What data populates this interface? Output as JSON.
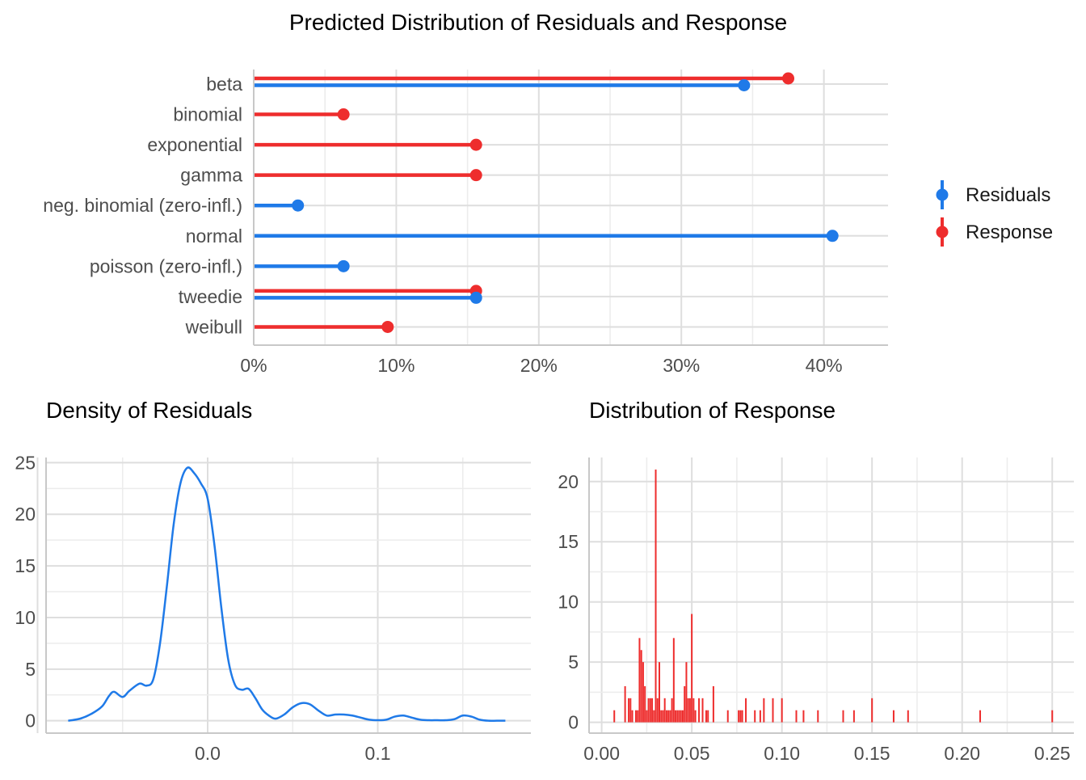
{
  "colors": {
    "residuals": "#1f7ae8",
    "response": "#ee2d2d"
  },
  "chart_data": [
    {
      "type": "bar",
      "orientation": "horizontal",
      "title": "Predicted Distribution of Residuals and Response",
      "categories": [
        "beta",
        "binomial",
        "exponential",
        "gamma",
        "neg. binomial (zero-infl.)",
        "normal",
        "poisson (zero-infl.)",
        "tweedie",
        "weibull"
      ],
      "series": [
        {
          "name": "Residuals",
          "color": "#1f7ae8",
          "values": [
            0.344,
            0,
            0,
            0,
            0.031,
            0.406,
            0.063,
            0.156,
            0
          ]
        },
        {
          "name": "Response",
          "color": "#ee2d2d",
          "values": [
            0.375,
            0.063,
            0.156,
            0.156,
            0,
            0,
            0,
            0.156,
            0.094
          ]
        }
      ],
      "xlim": [
        0,
        0.445
      ],
      "x_ticks": [
        0,
        0.1,
        0.2,
        0.3,
        0.4
      ],
      "x_tick_labels": [
        "0%",
        "10%",
        "20%",
        "30%",
        "40%"
      ],
      "legend": {
        "position": "right",
        "labels": [
          "Residuals",
          "Response"
        ]
      },
      "grid": true
    },
    {
      "type": "line",
      "title": "Density of Residuals",
      "color": "#1f7ae8",
      "x": [
        -0.082,
        -0.075,
        -0.068,
        -0.062,
        -0.058,
        -0.055,
        -0.05,
        -0.046,
        -0.04,
        -0.036,
        -0.032,
        -0.028,
        -0.024,
        -0.02,
        -0.016,
        -0.012,
        -0.008,
        -0.004,
        0.0,
        0.004,
        0.008,
        0.012,
        0.016,
        0.02,
        0.024,
        0.028,
        0.032,
        0.036,
        0.04,
        0.045,
        0.05,
        0.055,
        0.06,
        0.065,
        0.07,
        0.075,
        0.08,
        0.085,
        0.09,
        0.095,
        0.1,
        0.105,
        0.11,
        0.115,
        0.12,
        0.125,
        0.13,
        0.135,
        0.14,
        0.145,
        0.15,
        0.155,
        0.16,
        0.165,
        0.17,
        0.175
      ],
      "y": [
        0.0,
        0.2,
        0.7,
        1.4,
        2.4,
        2.8,
        2.3,
        2.9,
        3.6,
        3.4,
        4.0,
        7.5,
        13.0,
        19.0,
        23.0,
        24.5,
        24.0,
        23.0,
        21.5,
        17.0,
        11.0,
        6.0,
        3.5,
        3.0,
        3.1,
        2.2,
        1.1,
        0.5,
        0.2,
        0.6,
        1.3,
        1.7,
        1.6,
        1.0,
        0.5,
        0.6,
        0.6,
        0.5,
        0.3,
        0.1,
        0.05,
        0.1,
        0.4,
        0.5,
        0.3,
        0.1,
        0.05,
        0.05,
        0.05,
        0.15,
        0.5,
        0.4,
        0.1,
        0.0,
        0.0,
        0.0
      ],
      "xlim": [
        -0.095,
        0.19
      ],
      "ylim": [
        -1.2,
        25.5
      ],
      "x_ticks": [
        0.0,
        0.1
      ],
      "x_tick_labels": [
        "0.0",
        "0.1"
      ],
      "y_ticks": [
        0,
        5,
        10,
        15,
        20,
        25
      ],
      "y_tick_labels": [
        "0",
        "5",
        "10",
        "15",
        "20",
        "25"
      ],
      "grid": true
    },
    {
      "type": "bar",
      "title": "Distribution of Response",
      "color": "#ee2d2d",
      "x": [
        0.007,
        0.013,
        0.015,
        0.016,
        0.017,
        0.019,
        0.02,
        0.021,
        0.022,
        0.023,
        0.024,
        0.025,
        0.026,
        0.027,
        0.028,
        0.029,
        0.03,
        0.031,
        0.032,
        0.033,
        0.034,
        0.035,
        0.036,
        0.037,
        0.038,
        0.039,
        0.04,
        0.041,
        0.042,
        0.043,
        0.044,
        0.045,
        0.046,
        0.047,
        0.048,
        0.049,
        0.05,
        0.051,
        0.052,
        0.054,
        0.056,
        0.058,
        0.059,
        0.062,
        0.07,
        0.076,
        0.077,
        0.078,
        0.08,
        0.085,
        0.088,
        0.09,
        0.095,
        0.1,
        0.108,
        0.112,
        0.12,
        0.134,
        0.14,
        0.15,
        0.162,
        0.17,
        0.21,
        0.25
      ],
      "values": [
        1,
        3,
        2,
        2,
        1,
        1,
        1,
        7,
        6,
        5,
        3,
        1,
        2,
        2,
        2,
        1,
        21,
        2,
        5,
        1,
        1,
        2,
        1,
        1,
        1,
        2,
        7,
        1,
        1,
        1,
        1,
        1,
        3,
        5,
        2,
        2,
        9,
        2,
        1,
        2,
        2,
        1,
        1,
        3,
        1,
        1,
        1,
        1,
        2,
        1,
        1,
        2,
        2,
        2,
        1,
        1,
        1,
        1,
        1,
        2,
        1,
        1,
        1,
        1
      ],
      "xlim": [
        -0.007,
        0.262
      ],
      "ylim": [
        -0.9,
        22
      ],
      "x_ticks": [
        0.0,
        0.05,
        0.1,
        0.15,
        0.2,
        0.25
      ],
      "x_tick_labels": [
        "0.00",
        "0.05",
        "0.10",
        "0.15",
        "0.20",
        "0.25"
      ],
      "y_ticks": [
        0,
        5,
        10,
        15,
        20
      ],
      "y_tick_labels": [
        "0",
        "5",
        "10",
        "15",
        "20"
      ],
      "grid": true
    }
  ]
}
